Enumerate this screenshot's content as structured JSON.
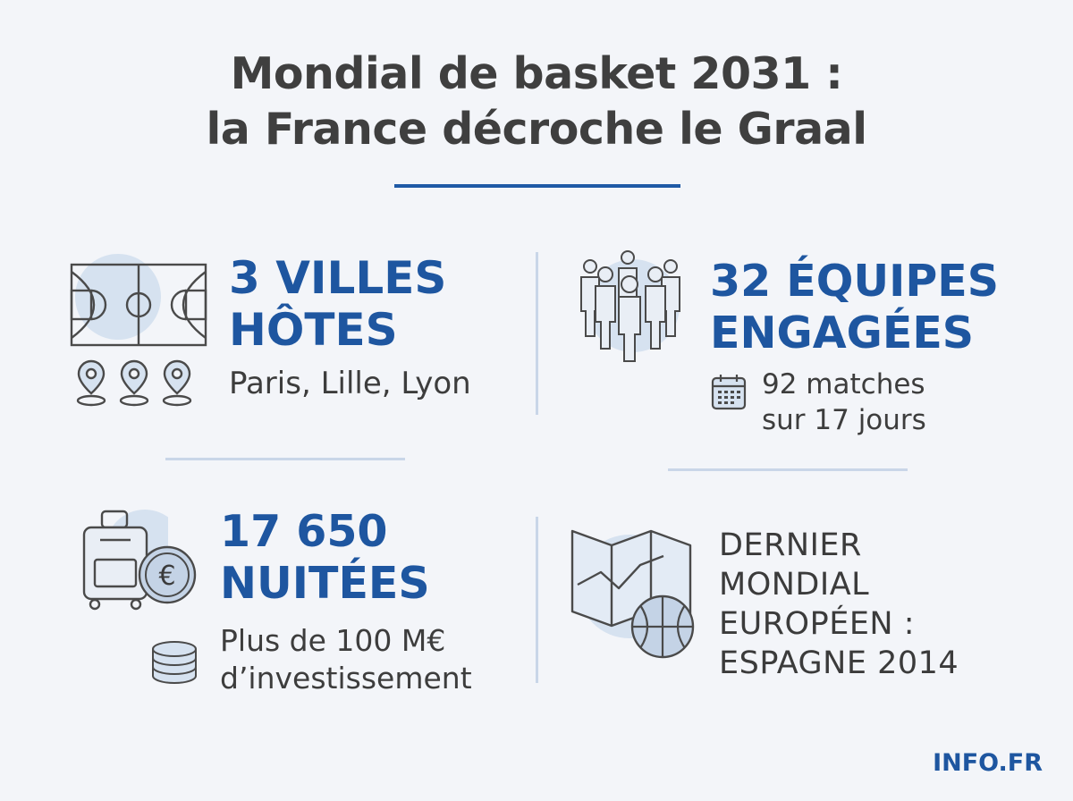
{
  "title": {
    "line1": "Mondial de basket 2031 :",
    "line2": "la France décroche le Graal"
  },
  "blocks": {
    "villes": {
      "headline_line1": "3 VILLES",
      "headline_line2": "HÔTES",
      "detail": "Paris, Lille, Lyon"
    },
    "equipes": {
      "headline_line1": "32 ÉQUIPES",
      "headline_line2": "ENGAGÉES",
      "detail_line1": "92 matches",
      "detail_line2": "sur 17 jours"
    },
    "nuitees": {
      "headline_line1": "17 650",
      "headline_line2": "NUITÉES",
      "detail_line1": "Plus de 100 M€",
      "detail_line2": "d’investissement"
    },
    "dernier": {
      "line1": "DERNIER",
      "line2": "MONDIAL",
      "line3": "EUROPÉEN :",
      "line4": "ESPAGNE 2014"
    }
  },
  "icons": {
    "court": "basketball-court-icon",
    "pins": "map-pin-icon",
    "team": "team-players-icon",
    "calendar": "calendar-icon",
    "luggage": "suitcase-icon",
    "euro": "euro-coin-icon",
    "coins": "coin-stack-icon",
    "map": "folded-map-icon",
    "ball": "basketball-icon"
  },
  "colors": {
    "accent": "#1e56a0",
    "text": "#3b3b3b",
    "background": "#f3f5f9",
    "icon_fill": "#d6e2f0"
  },
  "brand": "INFO.FR"
}
